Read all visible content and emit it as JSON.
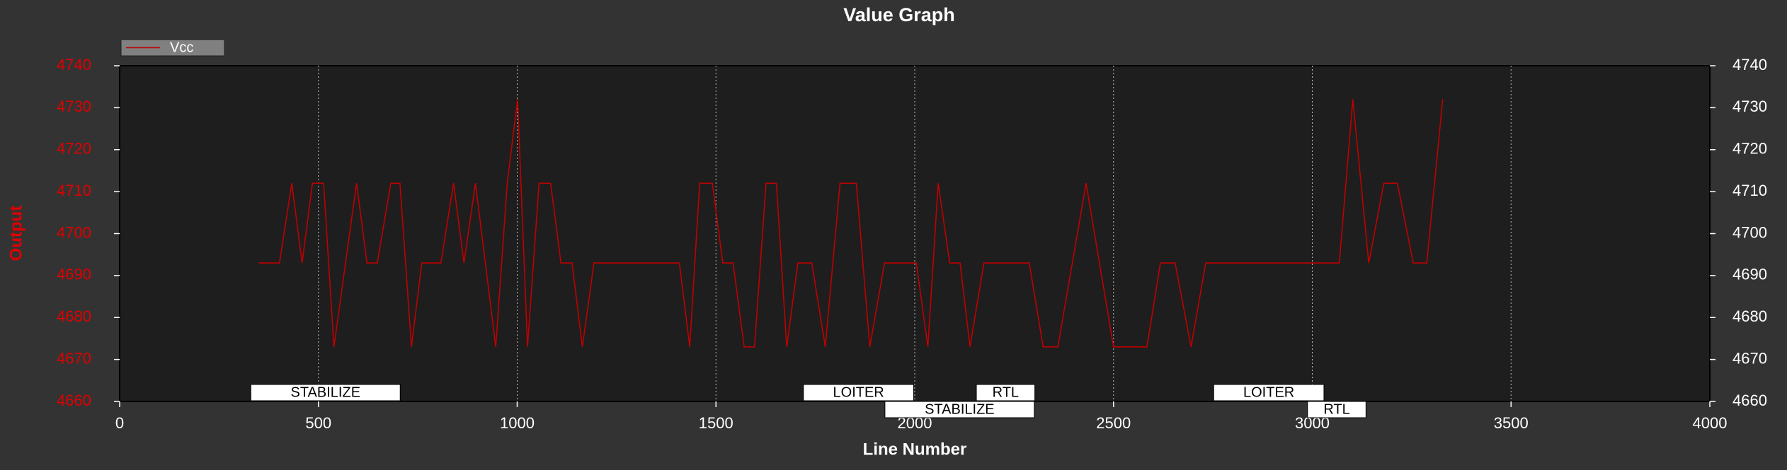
{
  "chart_data": {
    "type": "line",
    "title": "Value Graph",
    "x_label": "Line Number",
    "y_label": "Output",
    "xlim": [
      0,
      4000
    ],
    "xticks": [
      0,
      500,
      1000,
      1500,
      2000,
      2500,
      3000,
      3500,
      4000
    ],
    "ylim": [
      4660,
      4740
    ],
    "yticks": [
      4660,
      4670,
      4680,
      4690,
      4700,
      4710,
      4720,
      4730,
      4740
    ],
    "y2lim": [
      4660,
      4740
    ],
    "y2ticks": [
      4660,
      4670,
      4680,
      4690,
      4700,
      4710,
      4720,
      4730,
      4740
    ],
    "grid": true,
    "legend": "top-left",
    "series": [
      {
        "name": "Vcc",
        "color": "#c00000",
        "x": [
          350,
          402,
          433,
          459,
          485,
          513,
          539,
          596,
          622,
          648,
          682,
          705,
          734,
          760,
          808,
          840,
          866,
          895,
          946,
          975,
          1001,
          1026,
          1055,
          1084,
          1110,
          1138,
          1164,
          1193,
          1408,
          1434,
          1459,
          1491,
          1517,
          1543,
          1571,
          1597,
          1626,
          1652,
          1678,
          1706,
          1741,
          1775,
          1812,
          1853,
          1887,
          1924,
          2004,
          2033,
          2059,
          2088,
          2114,
          2139,
          2174,
          2288,
          2323,
          2360,
          2431,
          2500,
          2584,
          2618,
          2655,
          2695,
          2732,
          3068,
          3102,
          3142,
          3180,
          3214,
          3254,
          3288,
          3328
        ],
        "values": [
          4693,
          4693,
          4712,
          4693,
          4712,
          4712,
          4673,
          4712,
          4693,
          4693,
          4712,
          4712,
          4673,
          4693,
          4693,
          4712,
          4693,
          4712,
          4673,
          4712,
          4732,
          4673,
          4712,
          4712,
          4693,
          4693,
          4673,
          4693,
          4693,
          4673,
          4712,
          4712,
          4693,
          4693,
          4673,
          4673,
          4712,
          4712,
          4673,
          4693,
          4693,
          4673,
          4712,
          4712,
          4673,
          4693,
          4693,
          4673,
          4712,
          4693,
          4693,
          4673,
          4693,
          4693,
          4673,
          4673,
          4712,
          4673,
          4673,
          4693,
          4693,
          4673,
          4693,
          4693,
          4732,
          4693,
          4712,
          4712,
          4693,
          4693,
          4732
        ]
      }
    ],
    "annotations": [
      {
        "text": "STABILIZE",
        "x": 330
      },
      {
        "text": "LOITER",
        "x": 1720
      },
      {
        "text": "STABILIZE",
        "x": 1925
      },
      {
        "text": "RTL",
        "x": 2155
      },
      {
        "text": "LOITER",
        "x": 2752
      },
      {
        "text": "RTL",
        "x": 2988
      }
    ]
  }
}
